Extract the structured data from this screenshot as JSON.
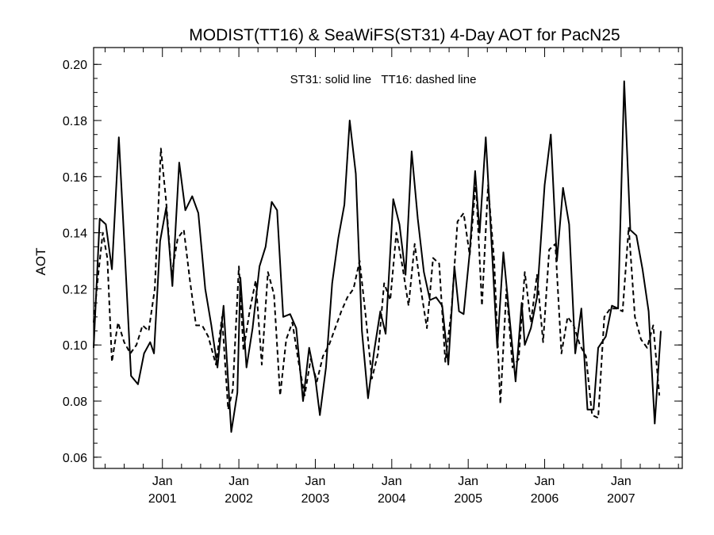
{
  "chart_data": {
    "type": "line",
    "title": "MODIST(TT16) & SeaWiFS(ST31) 4-Day AOT for PacN25",
    "annotation": "ST31: solid line   TT16: dashed line",
    "xlabel": "",
    "ylabel": "AOT",
    "xlim": [
      2000.1,
      2007.8
    ],
    "ylim": [
      0.056,
      0.206
    ],
    "y_ticks": [
      "0.06",
      "0.08",
      "0.10",
      "0.12",
      "0.14",
      "0.16",
      "0.18",
      "0.20"
    ],
    "y_tick_values": [
      0.06,
      0.08,
      0.1,
      0.12,
      0.14,
      0.16,
      0.18,
      0.2
    ],
    "x_ticks": [
      {
        "value": 2001.0,
        "month": "Jan",
        "year": "2001"
      },
      {
        "value": 2002.0,
        "month": "Jan",
        "year": "2002"
      },
      {
        "value": 2003.0,
        "month": "Jan",
        "year": "2003"
      },
      {
        "value": 2004.0,
        "month": "Jan",
        "year": "2004"
      },
      {
        "value": 2005.0,
        "month": "Jan",
        "year": "2005"
      },
      {
        "value": 2006.0,
        "month": "Jan",
        "year": "2006"
      },
      {
        "value": 2007.0,
        "month": "Jan",
        "year": "2007"
      }
    ],
    "grid": false,
    "series": [
      {
        "name": "ST31",
        "style": "solid",
        "points": [
          [
            2000.1,
            0.099
          ],
          [
            2000.18,
            0.145
          ],
          [
            2000.26,
            0.143
          ],
          [
            2000.34,
            0.127
          ],
          [
            2000.43,
            0.174
          ],
          [
            2000.51,
            0.132
          ],
          [
            2000.59,
            0.089
          ],
          [
            2000.68,
            0.086
          ],
          [
            2000.76,
            0.097
          ],
          [
            2000.84,
            0.101
          ],
          [
            2000.89,
            0.097
          ],
          [
            2000.97,
            0.137
          ],
          [
            2001.05,
            0.149
          ],
          [
            2001.13,
            0.121
          ],
          [
            2001.22,
            0.165
          ],
          [
            2001.3,
            0.148
          ],
          [
            2001.39,
            0.153
          ],
          [
            2001.47,
            0.147
          ],
          [
            2001.56,
            0.12
          ],
          [
            2001.64,
            0.107
          ],
          [
            2001.72,
            0.092
          ],
          [
            2001.8,
            0.114
          ],
          [
            2001.9,
            0.069
          ],
          [
            2001.98,
            0.083
          ],
          [
            2002.02,
            0.124
          ],
          [
            2002.1,
            0.092
          ],
          [
            2002.18,
            0.106
          ],
          [
            2002.27,
            0.128
          ],
          [
            2002.35,
            0.135
          ],
          [
            2002.43,
            0.151
          ],
          [
            2002.5,
            0.148
          ],
          [
            2002.58,
            0.11
          ],
          [
            2002.67,
            0.111
          ],
          [
            2002.75,
            0.106
          ],
          [
            2002.84,
            0.08
          ],
          [
            2002.92,
            0.099
          ],
          [
            2003.0,
            0.088
          ],
          [
            2003.06,
            0.075
          ],
          [
            2003.14,
            0.092
          ],
          [
            2003.22,
            0.122
          ],
          [
            2003.3,
            0.138
          ],
          [
            2003.38,
            0.15
          ],
          [
            2003.45,
            0.18
          ],
          [
            2003.53,
            0.161
          ],
          [
            2003.61,
            0.105
          ],
          [
            2003.69,
            0.081
          ],
          [
            2003.77,
            0.098
          ],
          [
            2003.85,
            0.112
          ],
          [
            2003.92,
            0.104
          ],
          [
            2004.02,
            0.152
          ],
          [
            2004.1,
            0.143
          ],
          [
            2004.18,
            0.125
          ],
          [
            2004.26,
            0.169
          ],
          [
            2004.34,
            0.145
          ],
          [
            2004.42,
            0.126
          ],
          [
            2004.5,
            0.116
          ],
          [
            2004.58,
            0.117
          ],
          [
            2004.66,
            0.114
          ],
          [
            2004.74,
            0.093
          ],
          [
            2004.82,
            0.128
          ],
          [
            2004.88,
            0.112
          ],
          [
            2004.94,
            0.111
          ],
          [
            2005.02,
            0.133
          ],
          [
            2005.09,
            0.162
          ],
          [
            2005.15,
            0.14
          ],
          [
            2005.23,
            0.174
          ],
          [
            2005.3,
            0.139
          ],
          [
            2005.38,
            0.099
          ],
          [
            2005.46,
            0.133
          ],
          [
            2005.54,
            0.11
          ],
          [
            2005.62,
            0.087
          ],
          [
            2005.7,
            0.115
          ],
          [
            2005.74,
            0.1
          ],
          [
            2005.82,
            0.106
          ],
          [
            2005.9,
            0.117
          ],
          [
            2006.0,
            0.157
          ],
          [
            2006.08,
            0.175
          ],
          [
            2006.16,
            0.13
          ],
          [
            2006.24,
            0.156
          ],
          [
            2006.32,
            0.143
          ],
          [
            2006.4,
            0.097
          ],
          [
            2006.48,
            0.113
          ],
          [
            2006.56,
            0.077
          ],
          [
            2006.64,
            0.077
          ],
          [
            2006.7,
            0.099
          ],
          [
            2006.8,
            0.103
          ],
          [
            2006.88,
            0.114
          ],
          [
            2006.96,
            0.113
          ],
          [
            2007.04,
            0.194
          ],
          [
            2007.12,
            0.141
          ],
          [
            2007.2,
            0.139
          ],
          [
            2007.28,
            0.127
          ],
          [
            2007.36,
            0.112
          ],
          [
            2007.44,
            0.072
          ],
          [
            2007.52,
            0.105
          ]
        ]
      },
      {
        "name": "TT16",
        "style": "dashed",
        "points": [
          [
            2000.1,
            0.108
          ],
          [
            2000.16,
            0.125
          ],
          [
            2000.22,
            0.14
          ],
          [
            2000.28,
            0.131
          ],
          [
            2000.34,
            0.094
          ],
          [
            2000.42,
            0.108
          ],
          [
            2000.5,
            0.101
          ],
          [
            2000.58,
            0.097
          ],
          [
            2000.66,
            0.1
          ],
          [
            2000.74,
            0.107
          ],
          [
            2000.82,
            0.105
          ],
          [
            2000.9,
            0.12
          ],
          [
            2000.98,
            0.17
          ],
          [
            2001.05,
            0.151
          ],
          [
            2001.12,
            0.125
          ],
          [
            2001.2,
            0.138
          ],
          [
            2001.28,
            0.141
          ],
          [
            2001.36,
            0.123
          ],
          [
            2001.44,
            0.107
          ],
          [
            2001.52,
            0.107
          ],
          [
            2001.6,
            0.103
          ],
          [
            2001.7,
            0.093
          ],
          [
            2001.78,
            0.11
          ],
          [
            2001.86,
            0.077
          ],
          [
            2001.92,
            0.084
          ],
          [
            2002.0,
            0.128
          ],
          [
            2002.06,
            0.098
          ],
          [
            2002.14,
            0.112
          ],
          [
            2002.22,
            0.123
          ],
          [
            2002.3,
            0.093
          ],
          [
            2002.38,
            0.126
          ],
          [
            2002.46,
            0.118
          ],
          [
            2002.54,
            0.082
          ],
          [
            2002.62,
            0.102
          ],
          [
            2002.7,
            0.108
          ],
          [
            2002.78,
            0.094
          ],
          [
            2002.86,
            0.082
          ],
          [
            2002.94,
            0.095
          ],
          [
            2003.02,
            0.087
          ],
          [
            2003.1,
            0.096
          ],
          [
            2003.18,
            0.1
          ],
          [
            2003.26,
            0.106
          ],
          [
            2003.34,
            0.112
          ],
          [
            2003.42,
            0.117
          ],
          [
            2003.5,
            0.12
          ],
          [
            2003.58,
            0.13
          ],
          [
            2003.66,
            0.11
          ],
          [
            2003.74,
            0.088
          ],
          [
            2003.82,
            0.097
          ],
          [
            2003.9,
            0.122
          ],
          [
            2003.98,
            0.116
          ],
          [
            2004.06,
            0.14
          ],
          [
            2004.14,
            0.128
          ],
          [
            2004.22,
            0.114
          ],
          [
            2004.3,
            0.136
          ],
          [
            2004.38,
            0.12
          ],
          [
            2004.46,
            0.106
          ],
          [
            2004.54,
            0.131
          ],
          [
            2004.62,
            0.129
          ],
          [
            2004.7,
            0.094
          ],
          [
            2004.78,
            0.112
          ],
          [
            2004.86,
            0.144
          ],
          [
            2004.94,
            0.147
          ],
          [
            2005.02,
            0.132
          ],
          [
            2005.1,
            0.158
          ],
          [
            2005.18,
            0.114
          ],
          [
            2005.26,
            0.157
          ],
          [
            2005.34,
            0.13
          ],
          [
            2005.42,
            0.079
          ],
          [
            2005.5,
            0.12
          ],
          [
            2005.58,
            0.092
          ],
          [
            2005.66,
            0.095
          ],
          [
            2005.74,
            0.126
          ],
          [
            2005.82,
            0.108
          ],
          [
            2005.9,
            0.125
          ],
          [
            2005.98,
            0.101
          ],
          [
            2006.06,
            0.134
          ],
          [
            2006.14,
            0.136
          ],
          [
            2006.22,
            0.097
          ],
          [
            2006.3,
            0.11
          ],
          [
            2006.38,
            0.107
          ],
          [
            2006.46,
            0.1
          ],
          [
            2006.54,
            0.096
          ],
          [
            2006.62,
            0.075
          ],
          [
            2006.7,
            0.074
          ],
          [
            2006.78,
            0.11
          ],
          [
            2006.86,
            0.113
          ],
          [
            2006.94,
            0.113
          ],
          [
            2007.02,
            0.112
          ],
          [
            2007.1,
            0.142
          ],
          [
            2007.18,
            0.11
          ],
          [
            2007.26,
            0.102
          ],
          [
            2007.34,
            0.099
          ],
          [
            2007.42,
            0.107
          ],
          [
            2007.5,
            0.082
          ]
        ]
      }
    ]
  }
}
